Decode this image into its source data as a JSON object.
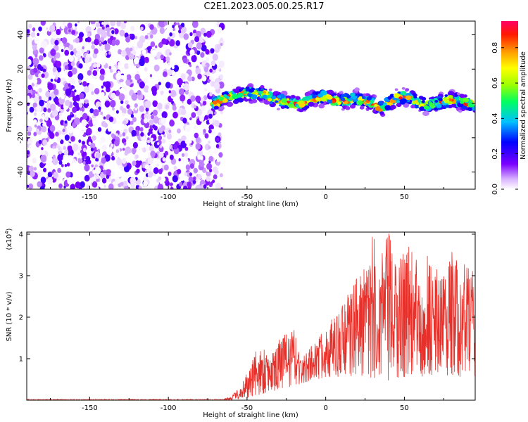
{
  "title": "C2E1.2023.005.00.25.R17",
  "chart_data": [
    {
      "type": "heatmap",
      "xlabel": "Height of straight line (km)",
      "ylabel": "Frequency (Hz)",
      "xlim": [
        -190,
        95
      ],
      "ylim": [
        -50,
        48
      ],
      "xticks": [
        -150,
        -100,
        -50,
        0,
        50
      ],
      "yticks": [
        -40,
        -20,
        0,
        20,
        40
      ],
      "colorbar": {
        "label": "Normalized spectral amplitude",
        "range": [
          0,
          0.95
        ],
        "ticks": [
          0.0,
          0.2,
          0.4,
          0.6,
          0.8
        ]
      },
      "noise_region_x": [
        -190,
        -72
      ],
      "signal_region_x": [
        -72,
        95
      ],
      "signal_ridge": {
        "x": [
          -72,
          -65,
          -58,
          -50,
          -45,
          -40,
          -35,
          -30,
          -25,
          -20,
          -15,
          -10,
          -5,
          0,
          5,
          10,
          15,
          20,
          25,
          30,
          35,
          40,
          45,
          50,
          55,
          60,
          65,
          70,
          75,
          80,
          85,
          90,
          95
        ],
        "y": [
          -1,
          3,
          4,
          6,
          5,
          6,
          3,
          2,
          1,
          0,
          0,
          2,
          3,
          4,
          2,
          1,
          2,
          3,
          1,
          0,
          -3,
          0,
          3,
          4,
          3,
          0,
          -1,
          0,
          1,
          2,
          1,
          0,
          -1
        ],
        "peak_amplitude": 0.95
      }
    },
    {
      "type": "line",
      "xlabel": "Height of straight line (km)",
      "ylabel": "SNR (10 * v/v)",
      "y_multiplier": "(x10",
      "y_multiplier_exp": "4",
      "y_multiplier_close": ")",
      "xlim": [
        -190,
        95
      ],
      "ylim": [
        0,
        4.05
      ],
      "xticks": [
        -150,
        -100,
        -50,
        0,
        50
      ],
      "yticks": [
        1,
        2,
        3,
        4
      ],
      "series": [
        {
          "color": "#e8302a",
          "envelope": {
            "x": [
              -190,
              -150,
              -100,
              -65,
              -60,
              -55,
              -50,
              -45,
              -40,
              -35,
              -30,
              -25,
              -20,
              -15,
              -10,
              -5,
              0,
              5,
              10,
              15,
              20,
              25,
              30,
              35,
              40,
              45,
              50,
              55,
              60,
              65,
              70,
              75,
              80,
              85,
              90,
              95
            ],
            "low": [
              0.0,
              0.0,
              0.0,
              0.0,
              0.01,
              0.02,
              0.05,
              0.1,
              0.15,
              0.2,
              0.25,
              0.3,
              0.35,
              0.4,
              0.45,
              0.5,
              0.55,
              0.55,
              0.5,
              0.55,
              0.6,
              0.55,
              0.5,
              0.5,
              0.45,
              0.5,
              0.55,
              0.5,
              0.55,
              0.6,
              0.6,
              0.55,
              0.6,
              0.55,
              0.6,
              0.55
            ],
            "high": [
              0.02,
              0.02,
              0.02,
              0.02,
              0.1,
              0.3,
              0.7,
              1.2,
              1.3,
              1.2,
              1.5,
              1.6,
              1.7,
              1.0,
              1.3,
              1.5,
              1.9,
              2.0,
              2.3,
              2.6,
              3.0,
              3.2,
              4.0,
              3.5,
              4.05,
              3.2,
              4.0,
              3.6,
              3.4,
              3.6,
              3.2,
              3.4,
              3.6,
              3.3,
              3.4,
              3.0
            ]
          }
        }
      ]
    }
  ]
}
